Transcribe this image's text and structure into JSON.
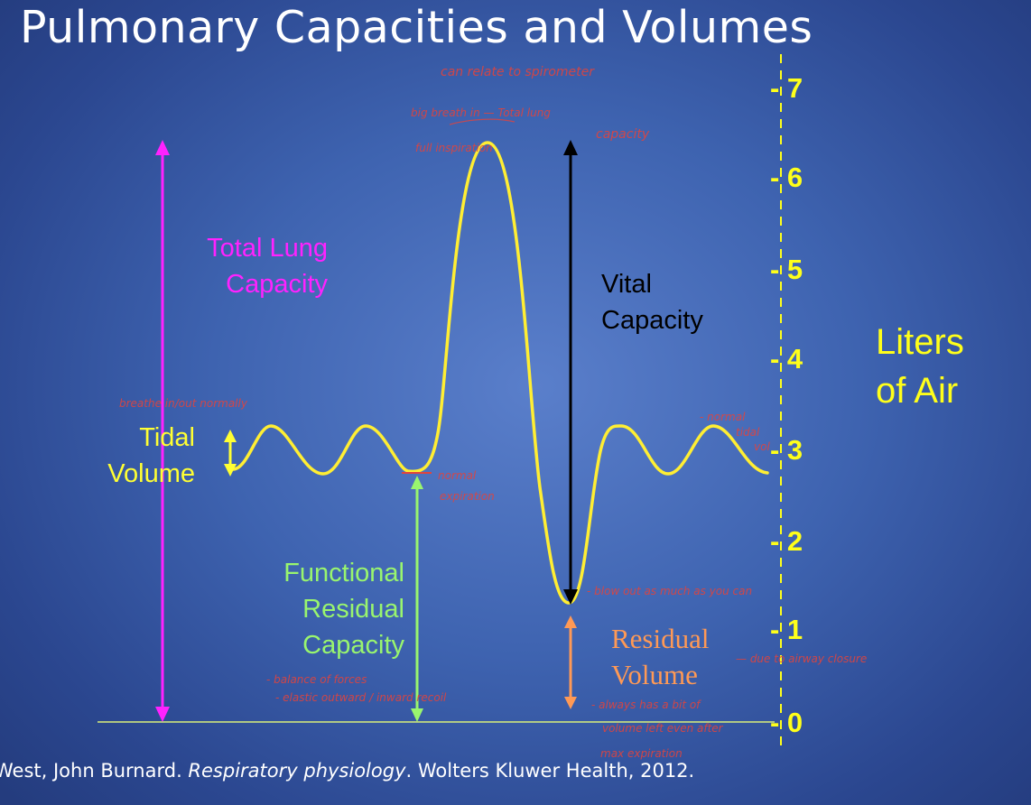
{
  "slide": {
    "title": "Pulmonary Capacities and Volumes",
    "citation_author": "West, John Burnard. ",
    "citation_work": "Respiratory physiology",
    "citation_rest": ". Wolters Kluwer Health, 2012."
  },
  "axis": {
    "label_line1": "Liters",
    "label_line2": "of Air",
    "ticks": [
      "- 7",
      "- 6",
      "- 5",
      "- 4",
      "- 3",
      "- 2",
      "- 1",
      "- 0"
    ]
  },
  "labels": {
    "tlc_line1": "Total Lung",
    "tlc_line2": "Capacity",
    "vc_line1": "Vital",
    "vc_line2": "Capacity",
    "tv_line1": "Tidal",
    "tv_line2": "Volume",
    "frc_line1": "Functional",
    "frc_line2": "Residual",
    "frc_line3": "Capacity",
    "rv_line1": "Residual",
    "rv_line2": "Volume"
  },
  "annotations": {
    "spirometer": "can relate to spirometer",
    "big_breath": "big breath in — Total lung",
    "full_inspiration": "full inspiration",
    "capacity": "capacity",
    "breathe_normally": "breathe in/out normally",
    "normal_tidal": "- normal",
    "normal_tidal2": "tidal",
    "normal_tidal3": "vol",
    "normal_expiration": "normal",
    "normal_expiration2": "expiration",
    "forced_exhale": "- blow out as much as you can",
    "airway_closure": "— due to airway closure",
    "balance_forces": "- balance of forces",
    "elastic_recoil": "- elastic outward / inward recoil",
    "always_bit": "- always has a bit of",
    "volume_left": "volume left even after",
    "max_expiration": "max expiration"
  },
  "colors": {
    "curve": "#ffee33",
    "tlc": "#ff22ff",
    "vc": "#000000",
    "tv": "#ffff33",
    "frc": "#99f56e",
    "rv": "#ff9955",
    "axis": "#ffff1a",
    "handwriting": "#e0443e"
  }
}
